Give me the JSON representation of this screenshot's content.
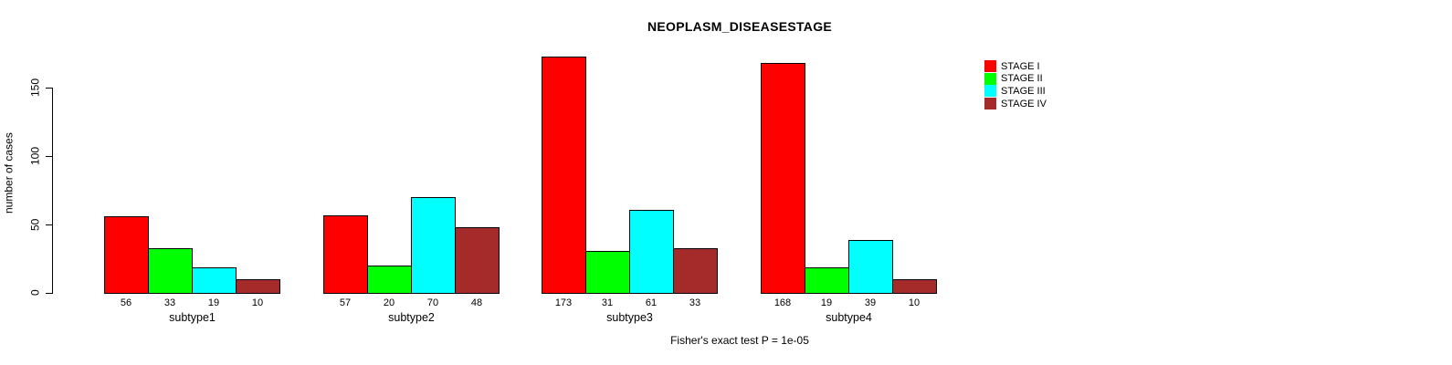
{
  "chart_data": {
    "type": "bar",
    "title": "NEOPLASM_DISEASESTAGE",
    "ylabel": "number of cases",
    "xlabel": "",
    "footnote": "Fisher's exact test P = 1e-05",
    "categories": [
      "subtype1",
      "subtype2",
      "subtype3",
      "subtype4"
    ],
    "series": [
      {
        "name": "STAGE I",
        "color": "#FF0000",
        "values": [
          56,
          57,
          173,
          168
        ]
      },
      {
        "name": "STAGE II",
        "color": "#00FF00",
        "values": [
          33,
          20,
          31,
          19
        ]
      },
      {
        "name": "STAGE III",
        "color": "#00FFFF",
        "values": [
          19,
          70,
          61,
          39
        ]
      },
      {
        "name": "STAGE IV",
        "color": "#A52A2A",
        "values": [
          10,
          48,
          33,
          10
        ]
      }
    ],
    "yticks": [
      0,
      50,
      100,
      150
    ],
    "ylim": [
      0,
      180
    ],
    "grid": false,
    "legend_position": "right",
    "value_labels": true,
    "bar_border_color": "#000000",
    "background_color": "#FFFFFF"
  }
}
